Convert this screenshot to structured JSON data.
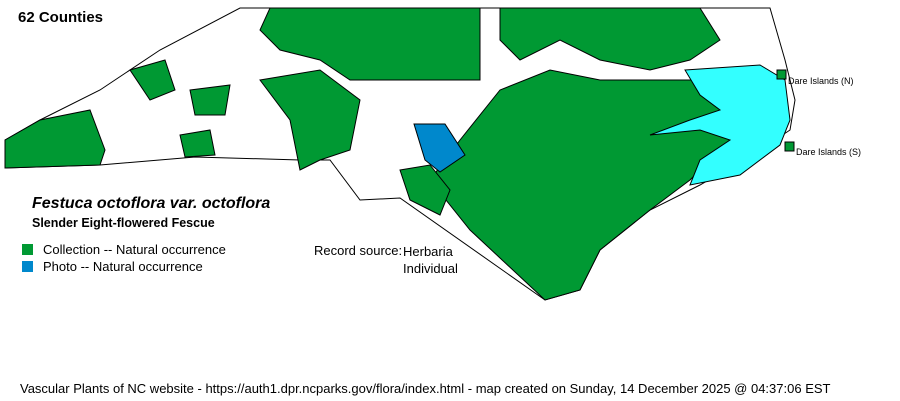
{
  "header": {
    "county_count": "62 Counties"
  },
  "species": {
    "scientific_name": "Festuca octoflora var. octoflora",
    "common_name": "Slender Eight-flowered Fescue"
  },
  "legend": {
    "items": [
      {
        "label": "Collection -- Natural occurrence",
        "color": "#009933"
      },
      {
        "label": "Photo -- Natural occurrence",
        "color": "#0088cc"
      }
    ]
  },
  "record_source": {
    "label": "Record source:",
    "values": [
      "Herbaria",
      "Individual"
    ]
  },
  "map": {
    "water_color": "#33ffff",
    "labels": [
      "Dare Islands (N)",
      "Dare Islands (S)"
    ]
  },
  "footer": "Vascular Plants of NC website - https://auth1.dpr.ncparks.gov/flora/index.html - map created on Sunday, 14 December 2025 @ 04:37:06 EST"
}
